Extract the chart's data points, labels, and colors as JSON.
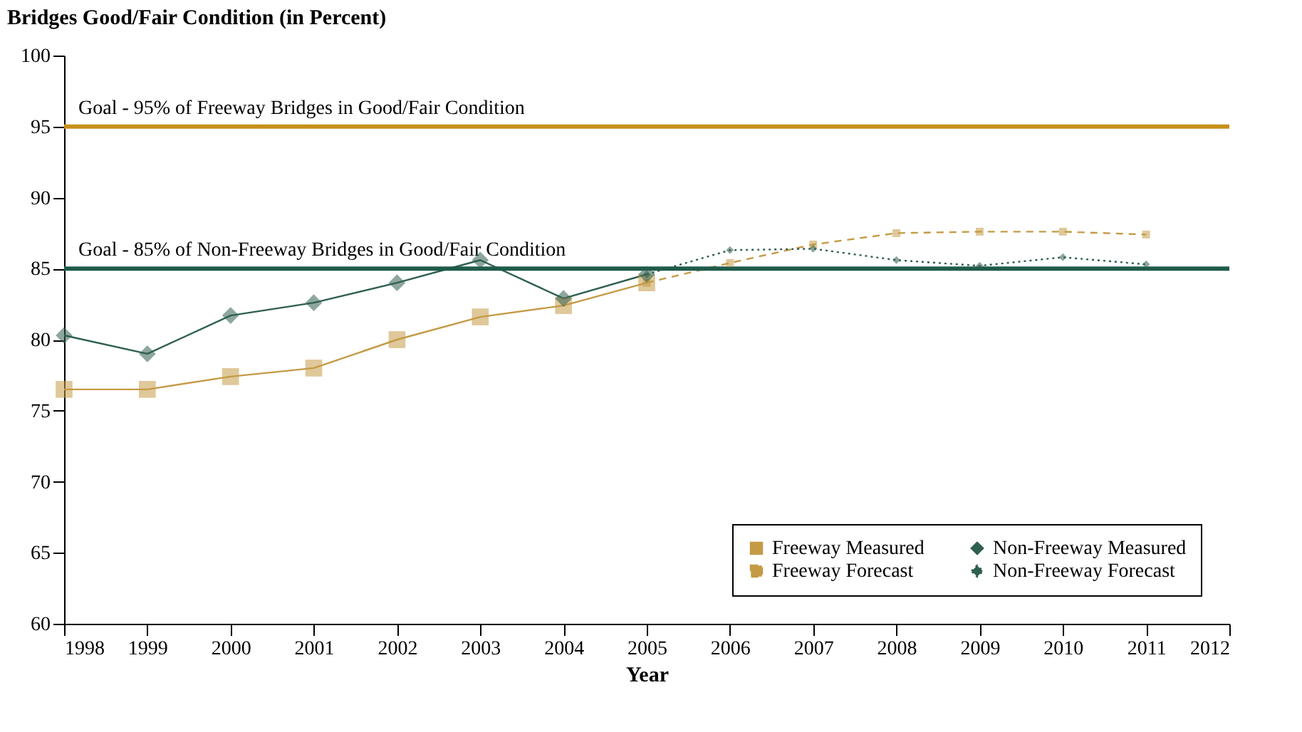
{
  "chart_data": {
    "type": "line",
    "title": "Bridges Good/Fair Condition (in Percent)",
    "xlabel": "Year",
    "xlim": [
      1998,
      2012
    ],
    "xticks": [
      1998,
      1999,
      2000,
      2001,
      2002,
      2003,
      2004,
      2005,
      2006,
      2007,
      2008,
      2009,
      2010,
      2011,
      2012
    ],
    "ylim": [
      60,
      100
    ],
    "yticks": [
      60,
      65,
      70,
      75,
      80,
      85,
      90,
      95,
      100
    ],
    "grid": false,
    "legend": "bottom right",
    "series": [
      {
        "name": "Freeway Measured",
        "color": "#c49a45",
        "marker": "square",
        "line_style": "solid",
        "x": [
          1998,
          1999,
          2000,
          2001,
          2002,
          2003,
          2004,
          2005
        ],
        "values": [
          76.5,
          76.5,
          77.4,
          78.0,
          80.0,
          81.6,
          82.4,
          84.0
        ]
      },
      {
        "name": "Freeway Forecast",
        "color": "#c49a45",
        "marker": "square",
        "line_style": "dashed",
        "x": [
          2005,
          2006,
          2007,
          2008,
          2009,
          2010,
          2011
        ],
        "values": [
          84.0,
          85.4,
          86.7,
          87.5,
          87.6,
          87.6,
          87.4
        ]
      },
      {
        "name": "Non-Freeway Measured",
        "color": "#2f5f50",
        "marker": "diamond",
        "line_style": "solid",
        "x": [
          1998,
          1999,
          2000,
          2001,
          2002,
          2003,
          2004,
          2005
        ],
        "values": [
          80.3,
          79.0,
          81.7,
          82.6,
          84.0,
          85.6,
          82.9,
          84.6
        ]
      },
      {
        "name": "Non-Freeway Forecast",
        "color": "#2f5f50",
        "marker": "diamond",
        "line_style": "dotted",
        "x": [
          2005,
          2006,
          2007,
          2008,
          2009,
          2010,
          2011
        ],
        "values": [
          84.6,
          86.3,
          86.4,
          85.6,
          85.2,
          85.8,
          85.3
        ]
      }
    ],
    "ref_lines": [
      {
        "axis": "y",
        "value": 95,
        "label": "Goal - 95% of Freeway Bridges in Good/Fair Condition",
        "color": "#c8901a"
      },
      {
        "axis": "y",
        "value": 85,
        "label": "Goal - 85% of Non-Freeway Bridges in Good/Fair Condition",
        "color": "#1f5a4a"
      }
    ]
  }
}
